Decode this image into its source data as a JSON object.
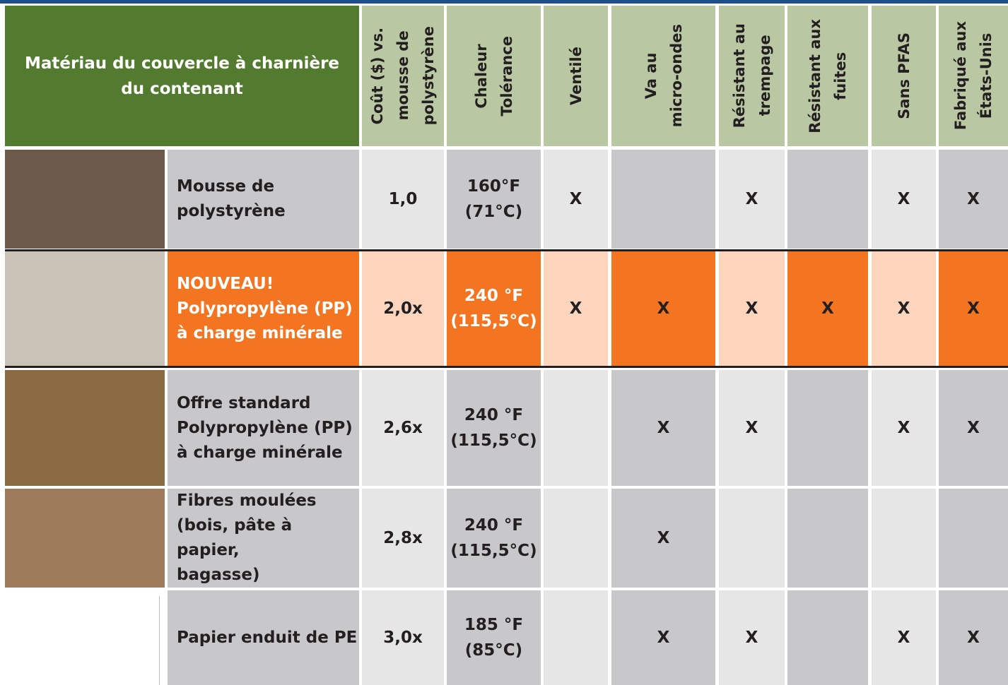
{
  "header": {
    "material": [
      "Matériau du couvercle à charnière",
      "du contenant"
    ],
    "columns": [
      [
        "Coût ($) vs.",
        "mousse de",
        "polystyrène"
      ],
      [
        "Chaleur",
        "Tolérance"
      ],
      [
        "Ventilé"
      ],
      [
        "Va au",
        "micro-ondes"
      ],
      [
        "Résistant au",
        "trempage"
      ],
      [
        "Résistant aux",
        "fuites"
      ],
      [
        "Sans PFAS"
      ],
      [
        "Fabriqué aux",
        "États-Unis"
      ]
    ]
  },
  "rows": [
    {
      "material": [
        "Mousse de",
        "polystyrène"
      ],
      "cost": "1,0",
      "heat": [
        "160°F",
        "(71°C)"
      ],
      "marks": [
        "X",
        null,
        "X",
        null,
        "X",
        "X"
      ]
    },
    {
      "material": [
        "NOUVEAU!",
        "Polypropylène (PP)",
        "à charge minérale"
      ],
      "cost": "2,0x",
      "heat": [
        "240 °F",
        "(115,5°C)"
      ],
      "marks": [
        "X",
        "X",
        "X",
        "X",
        "X",
        "X"
      ]
    },
    {
      "material": [
        "Offre standard",
        "Polypropylène (PP)",
        "à charge minérale"
      ],
      "cost": "2,6x",
      "heat": [
        "240 °F",
        "(115,5°C)"
      ],
      "marks": [
        null,
        "X",
        "X",
        null,
        "X",
        "X"
      ]
    },
    {
      "material": [
        "Fibres moulées",
        "(bois, pâte à papier,",
        "bagasse)"
      ],
      "cost": "2,8x",
      "heat": [
        "240 °F",
        "(115,5°C)"
      ],
      "marks": [
        null,
        "X",
        null,
        null,
        null,
        null
      ]
    },
    {
      "material": [
        "Papier enduit de PE"
      ],
      "cost": "3,0x",
      "heat": [
        "185 °F",
        "(85°C)"
      ],
      "marks": [
        null,
        "X",
        "X",
        null,
        "X",
        "X"
      ]
    }
  ]
}
